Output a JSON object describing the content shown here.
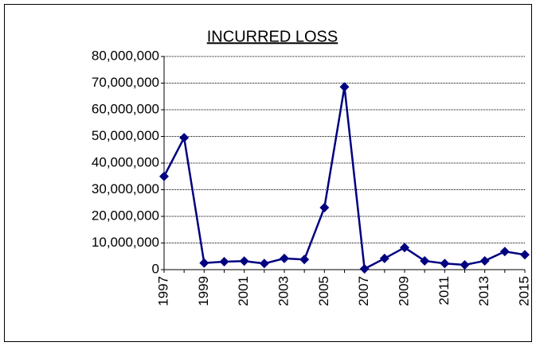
{
  "chart_data": {
    "type": "line",
    "title": "INCURRED LOSS",
    "categories": [
      "1997",
      null,
      "1999",
      null,
      "2001",
      null,
      "2003",
      null,
      "2005",
      null,
      "2007",
      null,
      "2009",
      null,
      "2011",
      null,
      "2013",
      null,
      "2015"
    ],
    "series": [
      {
        "name": "INCURRED LOSS",
        "color": "#000080",
        "values": [
          35000000,
          49500000,
          2500000,
          3000000,
          3200000,
          2300000,
          4200000,
          3800000,
          23300000,
          68600000,
          300000,
          4200000,
          8300000,
          3300000,
          2300000,
          1800000,
          3300000,
          6800000,
          5600000
        ]
      }
    ],
    "ylim": [
      0,
      80000000
    ],
    "yticks": [
      0,
      {
        "value": 10000000,
        "label": "10,000,000"
      },
      {
        "value": 20000000,
        "label": "20,000,000"
      },
      {
        "value": 30000000,
        "label": "30,000,000"
      },
      {
        "value": 40000000,
        "label": "40,000,000"
      },
      {
        "value": 50000000,
        "label": "50,000,000"
      },
      {
        "value": 60000000,
        "label": "60,000,000"
      },
      {
        "value": 70000000,
        "label": "70,000,000"
      },
      {
        "value": 80000000,
        "label": "80,000,000"
      }
    ],
    "grid": true
  }
}
